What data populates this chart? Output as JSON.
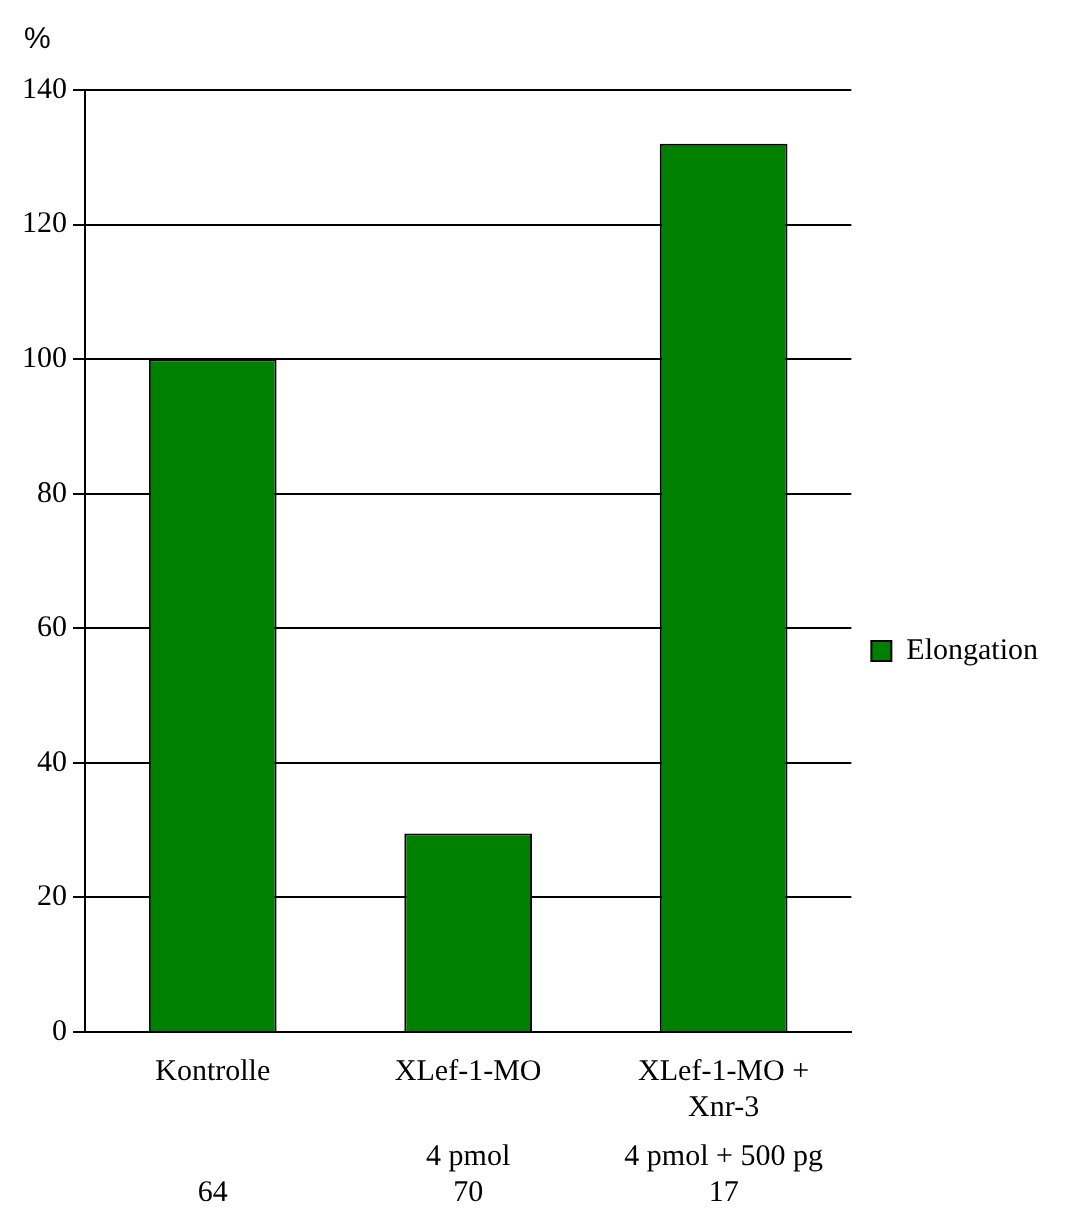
{
  "chart_data": {
    "type": "bar",
    "ylabel": "%",
    "categories": [
      "Kontrolle",
      "XLef-1-MO",
      "XLef-1-MO + Xnr-3"
    ],
    "series": [
      {
        "name": "Elongation",
        "color": "#008000",
        "values": [
          100,
          29.5,
          132
        ]
      }
    ],
    "ylim": [
      0,
      140
    ],
    "yticks": [
      0,
      20,
      40,
      60,
      80,
      100,
      120,
      140
    ],
    "grid": "y",
    "legend": "right",
    "annotations": [
      "64",
      "4 pmol",
      "70",
      "4 pmol + 500 pg",
      "17"
    ]
  }
}
